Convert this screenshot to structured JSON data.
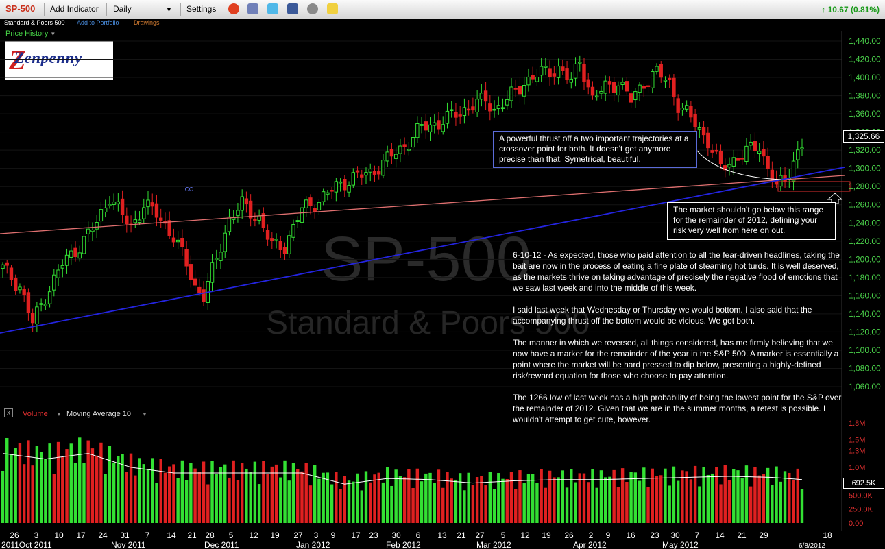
{
  "toolbar": {
    "symbol": "SP-500",
    "add_indicator": "Add Indicator",
    "interval": "Daily",
    "settings": "Settings",
    "change": "10.67 (0.81%)"
  },
  "subbar": {
    "name": "Standard & Poors 500",
    "add_to_portfolio": "Add to Portfolio",
    "drawings": "Drawings"
  },
  "price_history_label": "Price History",
  "logo_text": "Zenpenny",
  "watermark": {
    "symbol": "SP-500",
    "name": "Standard & Poors 500"
  },
  "price_axis": {
    "ticks": [
      "1,440.00",
      "1,420.00",
      "1,400.00",
      "1,380.00",
      "1,360.00",
      "1,340.00",
      "1,320.00",
      "1,300.00",
      "1,280.00",
      "1,260.00",
      "1,240.00",
      "1,220.00",
      "1,200.00",
      "1,180.00",
      "1,160.00",
      "1,140.00",
      "1,120.00",
      "1,100.00",
      "1,080.00",
      "1,060.00"
    ],
    "current": "1,325.66"
  },
  "volume_axis": {
    "ticks": [
      "1.8M",
      "1.5M",
      "1.3M",
      "1.0M",
      "500.0K",
      "250.0K",
      "0.00"
    ],
    "current": "692.5K"
  },
  "volume_header": {
    "close": "x",
    "volume": "Volume",
    "moving_average": "Moving Average 10"
  },
  "annotations": {
    "trajectory_note": "A powerful thrust off a two important trajectories at a crossover point for both. It doesn't get anymore precise than that. Symetrical, beautiful.",
    "range_note": "The market shouldn't go below this range for the remainder of 2012, defining your risk very well from here on out."
  },
  "commentary": [
    "6-10-12 - As expected, those who paid attention to all the fear-driven headlines, taking the bait are now in the process of eating a fine plate of steaming hot turds. It is well deserved, as the markets thrive on taking advantage of precisely the negative flood of emotions that we saw last week and into the middle of this week.",
    "I said last week that Wednesday or Thursday we would bottom. I also said that the accompanying thrust off the bottom would be vicious. We got both.",
    "The manner in which we reversed, all things considered, has me firmly believing that we now have a marker for the remainder of the year in the S&P 500. A marker is essentially a point where the market will be hard pressed to dip below, presenting a highly-defined risk/reward equation for those who choose to pay attention.",
    "The 1266 low of last week has a high probability of being the lowest point for the S&P over the remainder of 2012. Given that we are in the summer months, a retest is possible. I wouldn't attempt to get cute, however."
  ],
  "x_axis": {
    "days": [
      "26",
      "3",
      "10",
      "17",
      "24",
      "31",
      "7",
      "14",
      "21",
      "28",
      "5",
      "12",
      "19",
      "27",
      "3",
      "9",
      "17",
      "23",
      "30",
      "6",
      "13",
      "21",
      "27",
      "5",
      "12",
      "19",
      "26",
      "2",
      "9",
      "16",
      "23",
      "30",
      "7",
      "14",
      "21",
      "29",
      "18"
    ],
    "months": [
      "2011Oct 2011",
      "Nov 2011",
      "Dec 2011",
      "Jan 2012",
      "Feb 2012",
      "Mar 2012",
      "Apr 2012",
      "May 2012",
      "6/8/2012"
    ]
  },
  "chart_data": {
    "type": "candlestick",
    "ylim": [
      1060,
      1440
    ],
    "volume_ylim": [
      0,
      1800000
    ],
    "anchors": [
      [
        0,
        1190
      ],
      [
        4,
        1170
      ],
      [
        7,
        1130
      ],
      [
        10,
        1160
      ],
      [
        14,
        1195
      ],
      [
        18,
        1215
      ],
      [
        22,
        1240
      ],
      [
        25,
        1270
      ],
      [
        27,
        1255
      ],
      [
        30,
        1235
      ],
      [
        33,
        1260
      ],
      [
        36,
        1250
      ],
      [
        40,
        1225
      ],
      [
        43,
        1195
      ],
      [
        45,
        1170
      ],
      [
        47,
        1160
      ],
      [
        50,
        1200
      ],
      [
        53,
        1245
      ],
      [
        56,
        1260
      ],
      [
        60,
        1245
      ],
      [
        63,
        1215
      ],
      [
        66,
        1215
      ],
      [
        70,
        1255
      ],
      [
        74,
        1265
      ],
      [
        78,
        1280
      ],
      [
        82,
        1290
      ],
      [
        86,
        1295
      ],
      [
        90,
        1310
      ],
      [
        94,
        1325
      ],
      [
        98,
        1345
      ],
      [
        102,
        1350
      ],
      [
        106,
        1360
      ],
      [
        110,
        1370
      ],
      [
        113,
        1375
      ],
      [
        115,
        1365
      ],
      [
        118,
        1375
      ],
      [
        122,
        1395
      ],
      [
        126,
        1405
      ],
      [
        130,
        1410
      ],
      [
        133,
        1395
      ],
      [
        135,
        1420
      ],
      [
        138,
        1375
      ],
      [
        141,
        1390
      ],
      [
        144,
        1395
      ],
      [
        147,
        1375
      ],
      [
        150,
        1395
      ],
      [
        153,
        1405
      ],
      [
        156,
        1395
      ],
      [
        158,
        1370
      ],
      [
        162,
        1350
      ],
      [
        165,
        1330
      ],
      [
        168,
        1300
      ],
      [
        171,
        1310
      ],
      [
        174,
        1318
      ],
      [
        177,
        1325
      ],
      [
        179,
        1300
      ],
      [
        181,
        1280
      ],
      [
        183,
        1285
      ],
      [
        185,
        1310
      ],
      [
        187,
        1325
      ]
    ],
    "volume_anchors": [
      [
        0,
        1250000
      ],
      [
        10,
        1150000
      ],
      [
        20,
        1250000
      ],
      [
        30,
        1000000
      ],
      [
        40,
        900000
      ],
      [
        50,
        900000
      ],
      [
        60,
        900000
      ],
      [
        70,
        900000
      ],
      [
        80,
        700000
      ],
      [
        90,
        800000
      ],
      [
        100,
        780000
      ],
      [
        110,
        720000
      ],
      [
        120,
        760000
      ],
      [
        130,
        780000
      ],
      [
        140,
        780000
      ],
      [
        150,
        800000
      ],
      [
        160,
        820000
      ],
      [
        170,
        840000
      ],
      [
        180,
        820000
      ],
      [
        187,
        780000
      ]
    ]
  }
}
